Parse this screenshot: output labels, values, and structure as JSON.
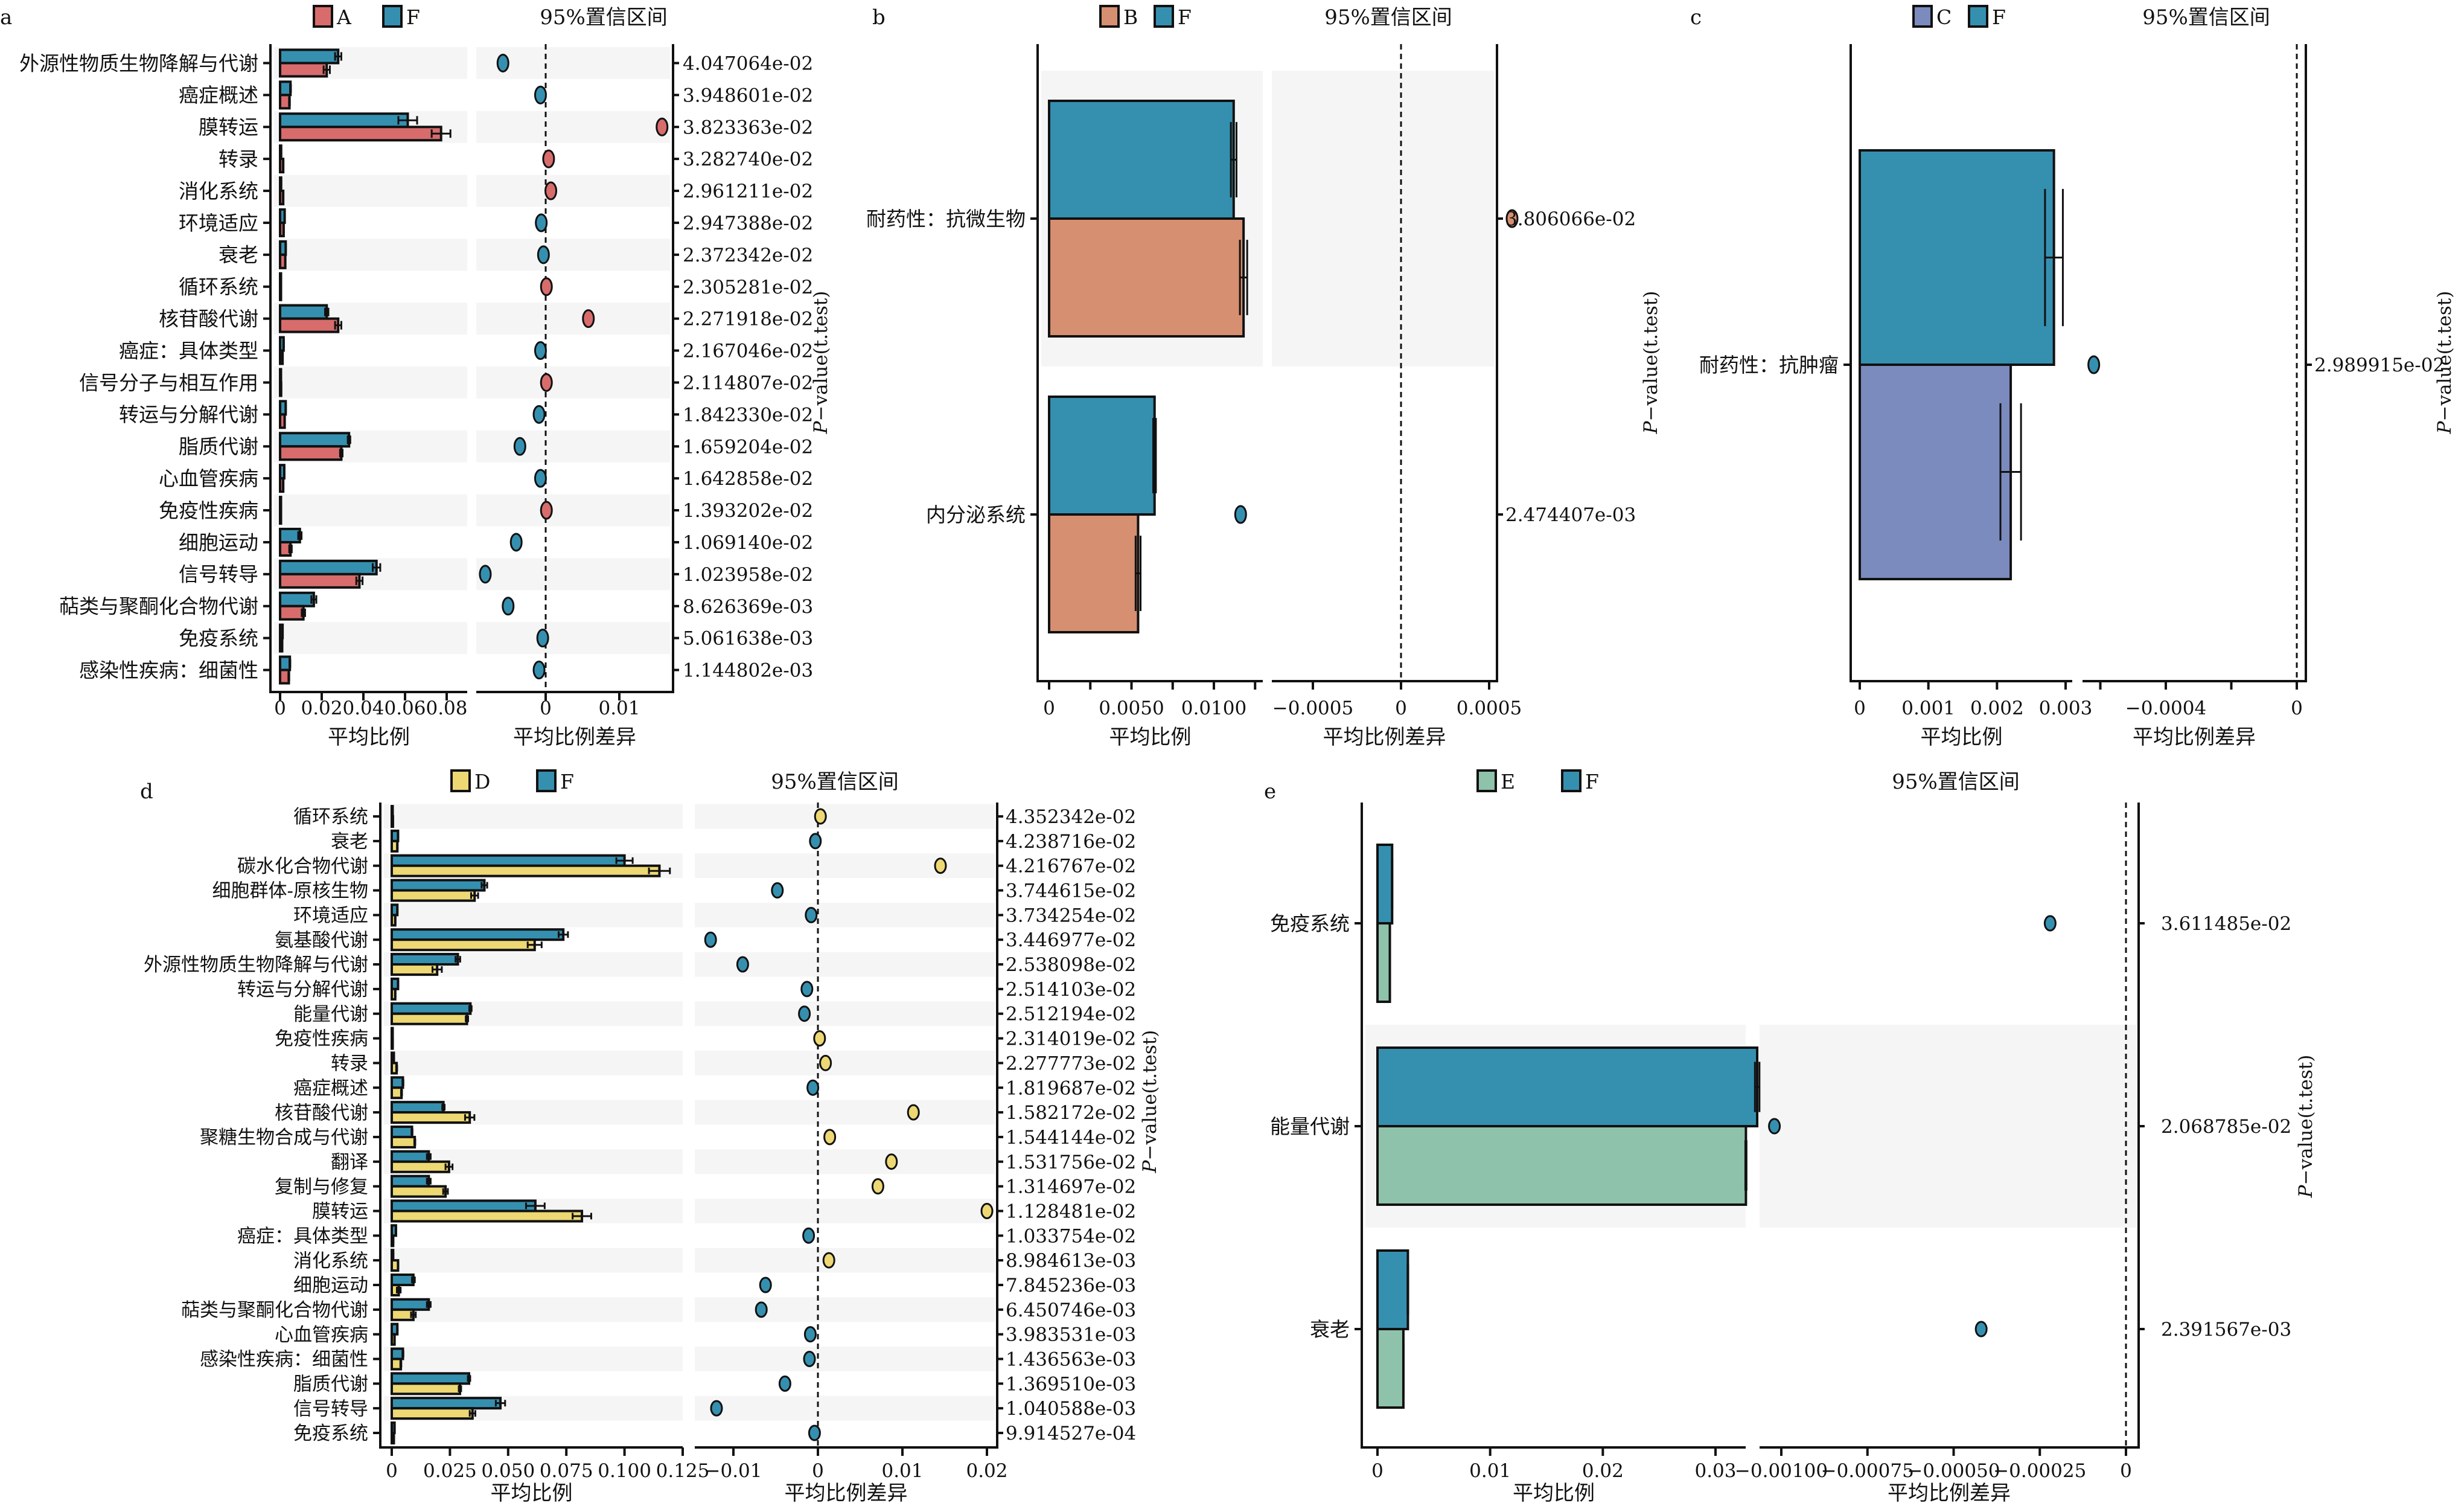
{
  "figure": {
    "ci_label": "95%置信区间",
    "xlabel_bars": "平均比例",
    "xlabel_diff": "平均比例差异",
    "pvalue_axis_title": "P-value(t.test)",
    "colors": {
      "A": "#D86C6C",
      "B": "#D68F70",
      "C": "#7B8BBE",
      "D": "#EDD873",
      "E": "#8FC2AA",
      "F": "#3590B0"
    }
  },
  "chart_data": [
    {
      "panel": "a",
      "type": "bar",
      "groups": [
        "A",
        "F"
      ],
      "title": "",
      "xlabel": "平均比例",
      "diff_xlabel": "平均比例差异",
      "ylabel": "",
      "right_ylabel": "P-value(t.test)",
      "xlim": [
        0,
        0.085
      ],
      "xticks": [
        0,
        0.02,
        0.04,
        0.06,
        0.08
      ],
      "xtick_labels": [
        "0",
        "0.02",
        "0.04",
        "0.06",
        "0.08"
      ],
      "diff_xlim": [
        -0.0092,
        0.0168
      ],
      "diff_xticks": [
        0,
        0.01
      ],
      "diff_xtick_labels": [
        "0",
        "0.01"
      ],
      "grid": false,
      "legend": "top",
      "categories": [
        "外源性物质生物降解与代谢",
        "癌症概述",
        "膜转运",
        "转录",
        "消化系统",
        "环境适应",
        "衰老",
        "循环系统",
        "核苷酸代谢",
        "癌症：具体类型",
        "信号分子与相互作用",
        "转运与分解代谢",
        "脂质代谢",
        "心血管疾病",
        "免疫性疾病",
        "细胞运动",
        "信号转导",
        "萜类与聚酮化合物代谢",
        "免疫系统",
        "感染性疾病：细菌性"
      ],
      "series": [
        {
          "name": "F",
          "values": [
            0.0279,
            0.005,
            0.0613,
            0.0005,
            0.0005,
            0.0022,
            0.0027,
            0.0002,
            0.0224,
            0.0017,
            0.0003,
            0.0027,
            0.0331,
            0.002,
            0.0002,
            0.0095,
            0.0463,
            0.0162,
            0.0012,
            0.0047
          ],
          "errors": [
            0.0015,
            0.0002,
            0.0045,
            0.0001,
            0.0001,
            0.0001,
            0.0001,
            0.0001,
            0.0008,
            0.0001,
            0.0001,
            0.0001,
            0.0006,
            0.0001,
            0.0001,
            0.0008,
            0.0018,
            0.0012,
            0.0001,
            0.0002
          ]
        },
        {
          "name": "A",
          "values": [
            0.0224,
            0.0045,
            0.0773,
            0.0015,
            0.0015,
            0.0017,
            0.0025,
            0.0004,
            0.0279,
            0.0012,
            0.0005,
            0.0022,
            0.0294,
            0.0015,
            0.0004,
            0.005,
            0.0381,
            0.0112,
            0.001,
            0.0042
          ],
          "errors": [
            0.0015,
            0.0002,
            0.0045,
            0.0001,
            0.0001,
            0.0001,
            0.0001,
            0.0001,
            0.0015,
            0.0001,
            0.0001,
            0.0001,
            0.0006,
            0.0001,
            0.0001,
            0.0006,
            0.0015,
            0.0008,
            0.0001,
            0.0002
          ]
        }
      ],
      "differences": [
        -0.0058,
        -0.0007,
        0.0158,
        0.0004,
        0.0007,
        -0.0006,
        -0.0003,
        0.0001,
        0.0058,
        -0.0007,
        0.0001,
        -0.0009,
        -0.0035,
        -0.0007,
        0.0001,
        -0.004,
        -0.0082,
        -0.0051,
        -0.0004,
        -0.0009
      ],
      "p_values": [
        "4.047064e-02",
        "3.948601e-02",
        "3.823363e-02",
        "3.282740e-02",
        "2.961211e-02",
        "2.947388e-02",
        "2.372342e-02",
        "2.305281e-02",
        "2.271918e-02",
        "2.167046e-02",
        "2.114807e-02",
        "1.842330e-02",
        "1.659204e-02",
        "1.642858e-02",
        "1.393202e-02",
        "1.069140e-02",
        "1.023958e-02",
        "8.626369e-03",
        "5.061638e-03",
        "1.144802e-03"
      ]
    },
    {
      "panel": "b",
      "type": "bar",
      "groups": [
        "B",
        "F"
      ],
      "title": "",
      "xlabel": "平均比例",
      "diff_xlabel": "平均比例差异",
      "right_ylabel": "P-value(t.test)",
      "xlim": [
        -0.0006,
        0.0128
      ],
      "xticks": [
        0,
        0.0025,
        0.005,
        0.0075,
        0.01,
        0.0125
      ],
      "xtick_labels": [
        "0",
        "",
        "0.0050",
        "",
        "0.0100",
        ""
      ],
      "diff_xlim": [
        -0.00098,
        0.00068
      ],
      "diff_xticks": [
        -0.0005,
        0,
        0.0005
      ],
      "diff_xtick_labels": [
        "-0.0005",
        "0",
        "0.0005"
      ],
      "grid": false,
      "legend": "top",
      "categories": [
        "耐药性：抗微生物",
        "内分泌系统"
      ],
      "series": [
        {
          "name": "F",
          "values": [
            0.0112,
            0.0064
          ],
          "errors": [
            0.00017,
            8e-05
          ]
        },
        {
          "name": "B",
          "values": [
            0.0118,
            0.0054
          ],
          "errors": [
            0.00022,
            0.00015
          ]
        }
      ],
      "differences": [
        0.00063,
        -0.00091
      ],
      "p_values": [
        "3.806066e-02",
        "2.474407e-03"
      ]
    },
    {
      "panel": "c",
      "type": "bar",
      "groups": [
        "C",
        "F"
      ],
      "title": "",
      "xlabel": "平均比例",
      "diff_xlabel": "平均比例差异",
      "right_ylabel": "P-value(t.test)",
      "xlim": [
        -0.00014,
        0.00311
      ],
      "xticks": [
        0,
        0.001,
        0.002,
        0.003
      ],
      "xtick_labels": [
        "0",
        "0.001",
        "0.002",
        "0.003"
      ],
      "diff_xlim": [
        -0.00065,
        3e-05
      ],
      "diff_xticks": [
        -0.0006,
        -0.0004,
        -0.0002,
        0
      ],
      "diff_xtick_labels": [
        "",
        "-0.0004",
        "",
        "0"
      ],
      "grid": false,
      "legend": "top",
      "categories": [
        "耐药性：抗肿瘤"
      ],
      "series": [
        {
          "name": "F",
          "values": [
            0.00283
          ],
          "errors": [
            0.00013
          ]
        },
        {
          "name": "C",
          "values": [
            0.0022
          ],
          "errors": [
            0.00015
          ]
        }
      ],
      "differences": [
        -0.00062
      ],
      "p_values": [
        "2.989915e-02"
      ]
    },
    {
      "panel": "d",
      "type": "bar",
      "groups": [
        "D",
        "F"
      ],
      "title": "",
      "xlabel": "平均比例",
      "diff_xlabel": "平均比例差异",
      "right_ylabel": "P-value(t.test)",
      "xlim": [
        -0.005,
        0.125
      ],
      "xticks": [
        0,
        0.025,
        0.05,
        0.075,
        0.1,
        0.125
      ],
      "xtick_labels": [
        "0",
        "0.025",
        "0.050",
        "0.075",
        "0.100",
        "0.125"
      ],
      "diff_xlim": [
        -0.0141,
        0.0211
      ],
      "diff_xticks": [
        -0.01,
        0,
        0.01,
        0.02
      ],
      "diff_xtick_labels": [
        "-0.01",
        "0",
        "0.01",
        "0.02"
      ],
      "grid": false,
      "legend": "top",
      "categories": [
        "循环系统",
        "衰老",
        "碳水化合物代谢",
        "细胞群体-原核生物",
        "环境适应",
        "氨基酸代谢",
        "外源性物质生物降解与代谢",
        "转运与分解代谢",
        "能量代谢",
        "免疫性疾病",
        "转录",
        "癌症概述",
        "核苷酸代谢",
        "聚糖生物合成与代谢",
        "翻译",
        "复制与修复",
        "膜转运",
        "癌症：具体类型",
        "消化系统",
        "细胞运动",
        "萜类与聚酮化合物代谢",
        "心血管疾病",
        "感染性疾病：细菌性",
        "脂质代谢",
        "信号转导",
        "免疫系统"
      ],
      "series": [
        {
          "name": "F",
          "values": [
            0.0002,
            0.0027,
            0.1,
            0.0398,
            0.0024,
            0.0737,
            0.0284,
            0.0027,
            0.0338,
            0.0002,
            0.0009,
            0.0048,
            0.0222,
            0.0087,
            0.0159,
            0.0159,
            0.0617,
            0.0018,
            0.0006,
            0.0093,
            0.0159,
            0.0024,
            0.0048,
            0.0332,
            0.0467,
            0.0012
          ],
          "errors": [
            0.0001,
            0.0001,
            0.0035,
            0.0012,
            0.0001,
            0.002,
            0.001,
            0.0001,
            0.0005,
            0.0001,
            0.0001,
            0.0002,
            0.0005,
            0.0002,
            0.0008,
            0.0008,
            0.004,
            0.0001,
            0.0001,
            0.0006,
            0.0008,
            0.0001,
            0.0002,
            0.0005,
            0.002,
            0.0001
          ]
        },
        {
          "name": "D",
          "values": [
            0.0005,
            0.0024,
            0.115,
            0.0356,
            0.0015,
            0.0614,
            0.0195,
            0.0015,
            0.0323,
            0.0004,
            0.0021,
            0.0042,
            0.0335,
            0.0099,
            0.0246,
            0.0231,
            0.0817,
            0.0006,
            0.0027,
            0.003,
            0.0093,
            0.0012,
            0.0039,
            0.0293,
            0.0347,
            0.0009
          ],
          "errors": [
            0.0001,
            0.0001,
            0.0045,
            0.0015,
            0.0001,
            0.003,
            0.002,
            0.0001,
            0.0005,
            0.0001,
            0.0002,
            0.0002,
            0.002,
            0.0002,
            0.0015,
            0.001,
            0.004,
            0.0001,
            0.0001,
            0.0008,
            0.001,
            0.0001,
            0.0002,
            0.0005,
            0.0012,
            0.0001
          ]
        }
      ],
      "differences": [
        0.0003,
        -0.0003,
        0.0145,
        -0.0048,
        -0.0008,
        -0.0127,
        -0.0089,
        -0.0013,
        -0.0016,
        0.0002,
        0.0009,
        -0.0006,
        0.0113,
        0.0014,
        0.0087,
        0.0071,
        0.02,
        -0.0011,
        0.0013,
        -0.0062,
        -0.0067,
        -0.0009,
        -0.001,
        -0.0039,
        -0.012,
        -0.0004
      ],
      "p_values": [
        "4.352342e-02",
        "4.238716e-02",
        "4.216767e-02",
        "3.744615e-02",
        "3.734254e-02",
        "3.446977e-02",
        "2.538098e-02",
        "2.514103e-02",
        "2.512194e-02",
        "2.314019e-02",
        "2.277773e-02",
        "1.819687e-02",
        "1.582172e-02",
        "1.544144e-02",
        "1.531756e-02",
        "1.314697e-02",
        "1.128481e-02",
        "1.033754e-02",
        "8.984613e-03",
        "7.845236e-03",
        "6.450746e-03",
        "3.983531e-03",
        "1.436563e-03",
        "1.369510e-03",
        "1.040588e-03",
        "9.914527e-04"
      ]
    },
    {
      "panel": "e",
      "type": "bar",
      "groups": [
        "E",
        "F"
      ],
      "title": "",
      "xlabel": "平均比例",
      "diff_xlabel": "平均比例差异",
      "right_ylabel": "P-value(t.test)",
      "xlim": [
        -0.0017,
        0.0357
      ],
      "xticks": [
        0,
        0.01,
        0.02,
        0.03
      ],
      "xtick_labels": [
        "0",
        "0.01",
        "0.02",
        "0.03"
      ],
      "diff_xlim": [
        -0.00106,
        4e-05
      ],
      "diff_xticks": [
        -0.001,
        -0.00075,
        -0.0005,
        -0.00025,
        0
      ],
      "diff_xtick_labels": [
        "-0.00100",
        "-0.00075",
        "-0.00050",
        "-0.00025",
        "0"
      ],
      "grid": false,
      "legend": "top",
      "categories": [
        "免疫系统",
        "能量代谢",
        "衰老"
      ],
      "series": [
        {
          "name": "F",
          "values": [
            0.0013,
            0.0337,
            0.0027
          ],
          "errors": [
            2e-05,
            0.0002,
            3e-05
          ]
        },
        {
          "name": "E",
          "values": [
            0.0011,
            0.0327,
            0.0023
          ],
          "errors": [
            2e-05,
            5e-05,
            2e-05
          ]
        }
      ],
      "differences": [
        -0.00022,
        -0.00102,
        -0.00042
      ],
      "p_values": [
        "3.611485e-02",
        "2.068785e-02",
        "2.391567e-03"
      ]
    }
  ]
}
